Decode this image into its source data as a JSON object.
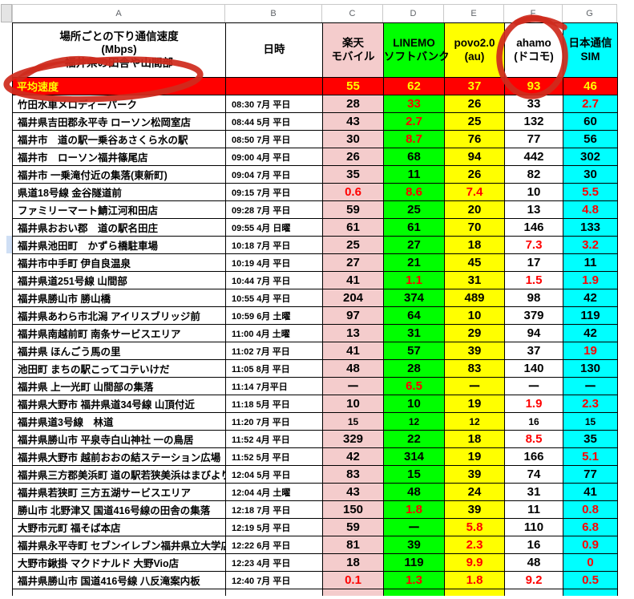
{
  "sheet_title": "場所ごとの下り通信速度 (Mbps) 福井県の田舎や山間部",
  "columns": [
    {
      "letter": "A",
      "title_lines": [
        "場所ごとの下り通信速度",
        "(Mbps)",
        "福井県の田舎や山間部"
      ],
      "bg": "#ffffff"
    },
    {
      "letter": "B",
      "title_lines": [
        "日時"
      ],
      "bg": "#ffffff"
    },
    {
      "letter": "C",
      "title_lines": [
        "楽天",
        "モバイル"
      ],
      "bg": "#f4cccc"
    },
    {
      "letter": "D",
      "title_lines": [
        "LINEMO",
        "ソフトバンク"
      ],
      "bg": "#00ff00"
    },
    {
      "letter": "E",
      "title_lines": [
        "povo2.0",
        "(au)"
      ],
      "bg": "#ffff00"
    },
    {
      "letter": "F",
      "title_lines": [
        "ahamo",
        "(ドコモ)"
      ],
      "bg": "#ffffff"
    },
    {
      "letter": "G",
      "title_lines": [
        "日本通信",
        "SIM"
      ],
      "bg": "#00ffff"
    }
  ],
  "average_row": {
    "label": "平均速度",
    "values": [
      "55",
      "62",
      "37",
      "93",
      "46"
    ]
  },
  "rows": [
    {
      "location": "竹田水車メロディーパーク",
      "time": "08:30 7月 平日",
      "values": [
        {
          "v": "28"
        },
        {
          "v": "33",
          "red": true
        },
        {
          "v": "26"
        },
        {
          "v": "33"
        },
        {
          "v": "2.7",
          "red": true
        }
      ]
    },
    {
      "location": "福井県吉田郡永平寺 ローソン松岡室店",
      "time": "08:44 5月 平日",
      "values": [
        {
          "v": "43"
        },
        {
          "v": "2.7",
          "red": true
        },
        {
          "v": "25"
        },
        {
          "v": "132"
        },
        {
          "v": "60"
        }
      ]
    },
    {
      "location": "福井市　道の駅一乗谷あさくら水の駅",
      "time": "08:50 7月 平日",
      "values": [
        {
          "v": "30"
        },
        {
          "v": "8.7",
          "red": true
        },
        {
          "v": "76"
        },
        {
          "v": "77"
        },
        {
          "v": "56"
        }
      ]
    },
    {
      "location": "福井市　ローソン福井篠尾店",
      "time": "09:00 4月 平日",
      "values": [
        {
          "v": "26"
        },
        {
          "v": "68"
        },
        {
          "v": "94"
        },
        {
          "v": "442"
        },
        {
          "v": "302"
        }
      ]
    },
    {
      "location": "福井市 一乗滝付近の集落(東新町)",
      "time": "09:04 7月 平日",
      "values": [
        {
          "v": "35"
        },
        {
          "v": "11"
        },
        {
          "v": "26"
        },
        {
          "v": "82"
        },
        {
          "v": "30"
        }
      ]
    },
    {
      "location": "県道18号線 金谷隧道前",
      "time": "09:15 7月 平日",
      "values": [
        {
          "v": "0.6",
          "red": true
        },
        {
          "v": "8.6",
          "red": true
        },
        {
          "v": "7.4",
          "red": true
        },
        {
          "v": "10"
        },
        {
          "v": "5.5",
          "red": true
        }
      ]
    },
    {
      "location": "ファミリーマート鯖江河和田店",
      "time": "09:28 7月 平日",
      "values": [
        {
          "v": "59"
        },
        {
          "v": "25"
        },
        {
          "v": "20"
        },
        {
          "v": "13"
        },
        {
          "v": "4.8",
          "red": true
        }
      ]
    },
    {
      "location": "福井県おおい郡　道の駅名田庄",
      "time": "09:55 4月 日曜",
      "values": [
        {
          "v": "61"
        },
        {
          "v": "61"
        },
        {
          "v": "70"
        },
        {
          "v": "146"
        },
        {
          "v": "133"
        }
      ]
    },
    {
      "location": "福井県池田町　かずら橋駐車場",
      "time": "10:18 7月 平日",
      "values": [
        {
          "v": "25"
        },
        {
          "v": "27"
        },
        {
          "v": "18"
        },
        {
          "v": "7.3",
          "red": true
        },
        {
          "v": "3.2",
          "red": true
        }
      ]
    },
    {
      "location": "福井市中手町 伊自良温泉",
      "time": "10:19 4月 平日",
      "values": [
        {
          "v": "27"
        },
        {
          "v": "21"
        },
        {
          "v": "45"
        },
        {
          "v": "17"
        },
        {
          "v": "11"
        }
      ]
    },
    {
      "location": "福井県道251号線 山間部",
      "time": "10:44 7月 平日",
      "values": [
        {
          "v": "41"
        },
        {
          "v": "1.1",
          "red": true
        },
        {
          "v": "31"
        },
        {
          "v": "1.5",
          "red": true
        },
        {
          "v": "1.9",
          "red": true
        }
      ]
    },
    {
      "location": "福井県勝山市 勝山橋",
      "time": "10:55 4月 平日",
      "values": [
        {
          "v": "204"
        },
        {
          "v": "374"
        },
        {
          "v": "489"
        },
        {
          "v": "98"
        },
        {
          "v": "42"
        }
      ]
    },
    {
      "location": "福井県あわら市北潟 アイリスブリッジ前",
      "time": "10:59 6月 土曜",
      "values": [
        {
          "v": "97"
        },
        {
          "v": "64"
        },
        {
          "v": "10"
        },
        {
          "v": "379"
        },
        {
          "v": "119"
        }
      ]
    },
    {
      "location": "福井県南越前町 南条サービスエリア",
      "time": "11:00 4月 土曜",
      "values": [
        {
          "v": "13"
        },
        {
          "v": "31"
        },
        {
          "v": "29"
        },
        {
          "v": "94"
        },
        {
          "v": "42"
        }
      ]
    },
    {
      "location": "福井県 ほんごう馬の里",
      "time": "11:02 7月 平日",
      "values": [
        {
          "v": "41"
        },
        {
          "v": "57"
        },
        {
          "v": "39"
        },
        {
          "v": "37"
        },
        {
          "v": "19",
          "red": true
        }
      ]
    },
    {
      "location": "池田町 まちの駅こってコテいけだ",
      "time": "11:05 8月 平日",
      "values": [
        {
          "v": "48"
        },
        {
          "v": "28"
        },
        {
          "v": "83"
        },
        {
          "v": "140"
        },
        {
          "v": "130"
        }
      ]
    },
    {
      "location": "福井県 上一光町 山間部の集落",
      "time": "11:14 7月平日",
      "values": [
        {
          "v": "ー"
        },
        {
          "v": "6.5",
          "red": true
        },
        {
          "v": "ー"
        },
        {
          "v": "ー"
        },
        {
          "v": "ー"
        }
      ]
    },
    {
      "location": "福井県大野市 福井県道34号線 山頂付近",
      "time": "11:18 5月 平日",
      "values": [
        {
          "v": "10"
        },
        {
          "v": "10"
        },
        {
          "v": "19"
        },
        {
          "v": "1.9",
          "red": true
        },
        {
          "v": "2.3",
          "red": true
        }
      ]
    },
    {
      "location": "福井県道3号線　林道",
      "time": "11:20 7月 平日",
      "small": true,
      "values": [
        {
          "v": "15"
        },
        {
          "v": "12"
        },
        {
          "v": "12"
        },
        {
          "v": "16"
        },
        {
          "v": "15"
        }
      ]
    },
    {
      "location": "福井県勝山市 平泉寺白山神社 一の鳥居",
      "time": "11:52 4月 平日",
      "values": [
        {
          "v": "329"
        },
        {
          "v": "22"
        },
        {
          "v": "18"
        },
        {
          "v": "8.5",
          "red": true
        },
        {
          "v": "35"
        }
      ]
    },
    {
      "location": "福井県大野市 越前おおの結ステーション広場",
      "time": "11:52 5月 平日",
      "values": [
        {
          "v": "42"
        },
        {
          "v": "314"
        },
        {
          "v": "19"
        },
        {
          "v": "166"
        },
        {
          "v": "5.1",
          "red": true
        }
      ]
    },
    {
      "location": "福井県三方郡美浜町 道の駅若狭美浜はまびより",
      "time": "12:04 5月 平日",
      "values": [
        {
          "v": "83"
        },
        {
          "v": "15"
        },
        {
          "v": "39"
        },
        {
          "v": "74"
        },
        {
          "v": "77"
        }
      ]
    },
    {
      "location": "福井県若狭町 三方五湖サービスエリア",
      "time": "12:04 4月 土曜",
      "values": [
        {
          "v": "43"
        },
        {
          "v": "48"
        },
        {
          "v": "24"
        },
        {
          "v": "31"
        },
        {
          "v": "41"
        }
      ]
    },
    {
      "location": "勝山市 北野津又 国道416号線の田舎の集落",
      "time": "12:18 7月 平日",
      "values": [
        {
          "v": "150"
        },
        {
          "v": "1.8",
          "red": true
        },
        {
          "v": "39"
        },
        {
          "v": "11"
        },
        {
          "v": "0.8",
          "red": true
        }
      ]
    },
    {
      "location": "大野市元町 福そば本店",
      "time": "12:19 5月 平日",
      "values": [
        {
          "v": "59"
        },
        {
          "v": "ー"
        },
        {
          "v": "5.8",
          "red": true
        },
        {
          "v": "110"
        },
        {
          "v": "6.8",
          "red": true
        }
      ]
    },
    {
      "location": "福井県永平寺町 セブンイレブン福井県立大学店",
      "time": "12:22 6月 平日",
      "values": [
        {
          "v": "81"
        },
        {
          "v": "39"
        },
        {
          "v": "2.3",
          "red": true
        },
        {
          "v": "16"
        },
        {
          "v": "0.9",
          "red": true
        }
      ]
    },
    {
      "location": "大野市鍬掛 マクドナルド 大野Vio店",
      "time": "12:23 4月 平日",
      "values": [
        {
          "v": "18"
        },
        {
          "v": "119"
        },
        {
          "v": "9.9",
          "red": true
        },
        {
          "v": "48"
        },
        {
          "v": "0",
          "red": true
        }
      ]
    },
    {
      "location": "福井県勝山市 国道416号線 八反滝案内板",
      "time": "12:40 7月 平日",
      "values": [
        {
          "v": "0.1",
          "red": true
        },
        {
          "v": "1.3",
          "red": true
        },
        {
          "v": "1.8",
          "red": true
        },
        {
          "v": "9.2",
          "red": true
        },
        {
          "v": "0.5",
          "red": true
        }
      ]
    }
  ],
  "colors": {
    "average_row_bg": "#ff0000",
    "average_row_text": "#ffff00",
    "low_speed_text": "#ff0000",
    "annotation_marker": "#cf2b1d",
    "column_c_bg": "#f4cccc",
    "column_d_bg": "#00ff00",
    "column_e_bg": "#ffff00",
    "column_f_bg": "#ffffff",
    "column_g_bg": "#00ffff"
  },
  "annotations": [
    "circle-around-heikin-sokudo",
    "circle-around-ahamo-column"
  ]
}
